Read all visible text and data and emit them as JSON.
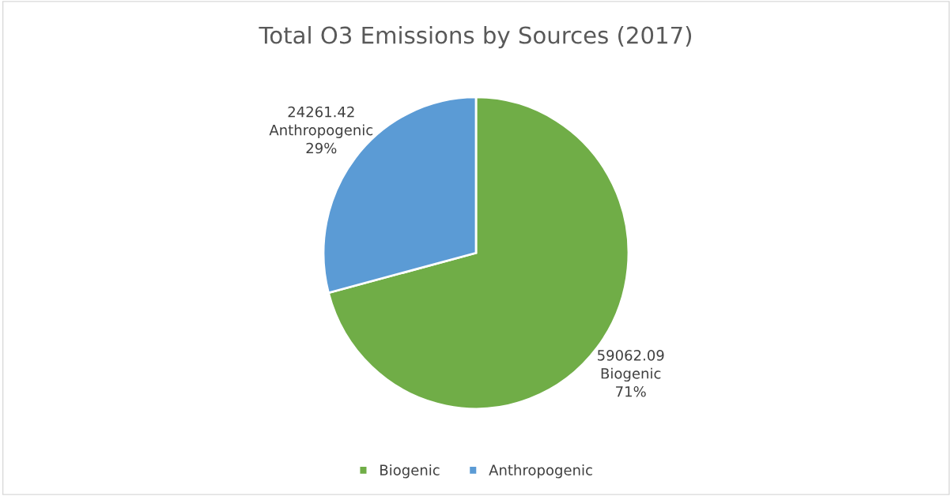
{
  "chart_data": {
    "type": "pie",
    "title": "Total O3 Emissions by Sources (2017)",
    "categories": [
      "Biogenic",
      "Anthropogenic"
    ],
    "values": [
      59062.09,
      24261.42
    ],
    "colors": [
      "#70ad47",
      "#5b9bd5"
    ],
    "value_labels": [
      "59062.09\nBiogenic\n71%",
      "24261.42\nAnthropogenic\n29%"
    ],
    "legend": "bottom"
  }
}
